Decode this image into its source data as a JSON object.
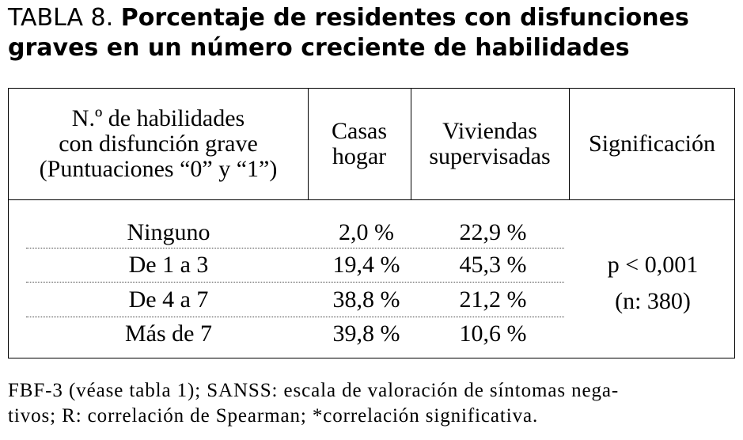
{
  "title": {
    "label": "TABLA 8.",
    "text": "Porcentaje de residentes con disfunciones graves en un número creciente de habilidades"
  },
  "table": {
    "headers": {
      "col1": [
        "N.º de habilidades",
        "con disfunción grave",
        "(Puntuaciones “0” y “1”)"
      ],
      "col2": [
        "Casas",
        "hogar"
      ],
      "col3": [
        "Viviendas",
        "supervisadas"
      ],
      "col4": [
        "Significación"
      ]
    },
    "rows": [
      {
        "label": "Ninguno",
        "casas": "2,0 %",
        "viviendas": "22,9 %"
      },
      {
        "label": "De 1 a 3",
        "casas": "19,4 %",
        "viviendas": "45,3 %"
      },
      {
        "label": "De 4 a 7",
        "casas": "38,8 %",
        "viviendas": "21,2 %"
      },
      {
        "label": "Más de 7",
        "casas": "39,8 %",
        "viviendas": "10,6 %"
      }
    ],
    "significance": [
      "p < 0,001",
      "(n: 380)"
    ]
  },
  "footnote": [
    "FBF-3 (véase tabla 1); SANSS: escala de valoración de síntomas nega-",
    "tivos; R: correlación de Spearman; *correlación significativa."
  ]
}
